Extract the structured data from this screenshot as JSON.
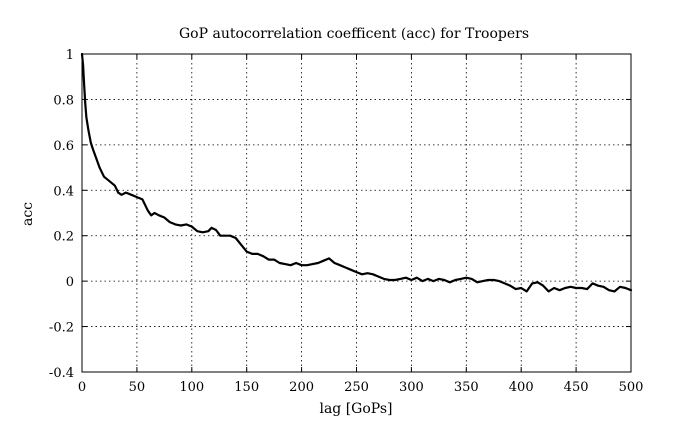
{
  "chart_data": {
    "type": "line",
    "title": "GoP autocorrelation coefficent (acc) for Troopers",
    "xlabel": "lag [GoPs]",
    "ylabel": "acc",
    "xlim": [
      0,
      500
    ],
    "ylim": [
      -0.4,
      1
    ],
    "xticks": [
      0,
      50,
      100,
      150,
      200,
      250,
      300,
      350,
      400,
      450,
      500
    ],
    "yticks": [
      1,
      0.8,
      0.6,
      0.4,
      0.2,
      0,
      -0.2,
      -0.4
    ],
    "grid": true,
    "series": [
      {
        "color": "#000000",
        "x": [
          0,
          1,
          2,
          3,
          4,
          6,
          8,
          10,
          13,
          16,
          20,
          25,
          30,
          33,
          36,
          40,
          45,
          50,
          55,
          60,
          63,
          66,
          70,
          75,
          80,
          85,
          90,
          95,
          100,
          105,
          110,
          115,
          118,
          122,
          126,
          130,
          135,
          140,
          145,
          150,
          155,
          160,
          165,
          170,
          175,
          180,
          185,
          190,
          195,
          200,
          205,
          210,
          215,
          220,
          225,
          230,
          235,
          240,
          245,
          250,
          255,
          260,
          265,
          270,
          275,
          280,
          285,
          290,
          295,
          300,
          305,
          310,
          315,
          320,
          325,
          330,
          335,
          340,
          345,
          350,
          355,
          360,
          365,
          370,
          375,
          380,
          385,
          390,
          395,
          400,
          405,
          410,
          415,
          420,
          425,
          430,
          435,
          440,
          445,
          450,
          455,
          460,
          465,
          470,
          475,
          480,
          485,
          490,
          495,
          500
        ],
        "y": [
          1.0,
          0.95,
          0.86,
          0.78,
          0.72,
          0.66,
          0.61,
          0.58,
          0.54,
          0.5,
          0.46,
          0.44,
          0.42,
          0.39,
          0.38,
          0.39,
          0.38,
          0.37,
          0.36,
          0.31,
          0.29,
          0.3,
          0.29,
          0.28,
          0.26,
          0.25,
          0.245,
          0.25,
          0.24,
          0.22,
          0.215,
          0.22,
          0.235,
          0.225,
          0.2,
          0.2,
          0.2,
          0.19,
          0.16,
          0.13,
          0.12,
          0.12,
          0.11,
          0.095,
          0.095,
          0.08,
          0.075,
          0.07,
          0.08,
          0.07,
          0.07,
          0.075,
          0.08,
          0.09,
          0.1,
          0.08,
          0.07,
          0.06,
          0.05,
          0.04,
          0.03,
          0.035,
          0.03,
          0.02,
          0.01,
          0.005,
          0.005,
          0.01,
          0.015,
          0.005,
          0.015,
          0.0,
          0.01,
          0.0,
          0.01,
          0.005,
          -0.005,
          0.005,
          0.01,
          0.015,
          0.01,
          -0.005,
          0.0,
          0.005,
          0.005,
          0.0,
          -0.01,
          -0.02,
          -0.035,
          -0.03,
          -0.045,
          -0.01,
          -0.005,
          -0.02,
          -0.045,
          -0.03,
          -0.04,
          -0.03,
          -0.025,
          -0.03,
          -0.03,
          -0.035,
          -0.01,
          -0.02,
          -0.025,
          -0.04,
          -0.045,
          -0.025,
          -0.03,
          -0.04
        ]
      }
    ]
  }
}
